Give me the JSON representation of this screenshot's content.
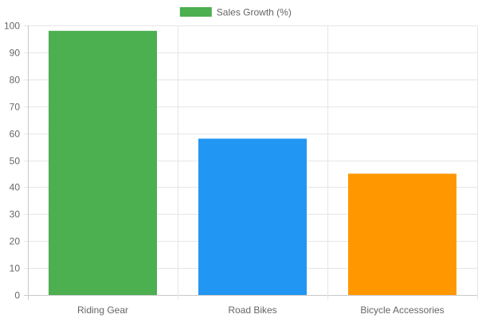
{
  "chart_data": {
    "type": "bar",
    "categories": [
      "Riding Gear",
      "Road Bikes",
      "Bicycle Accessories"
    ],
    "series": [
      {
        "name": "Sales Growth (%)",
        "values": [
          98,
          58,
          45
        ],
        "colors": [
          "#4caf50",
          "#2196f3",
          "#ff9800"
        ]
      }
    ],
    "ylim": [
      0,
      100
    ],
    "yticks": [
      0,
      10,
      20,
      30,
      40,
      50,
      60,
      70,
      80,
      90,
      100
    ],
    "grid": true,
    "legend": "top-center"
  }
}
